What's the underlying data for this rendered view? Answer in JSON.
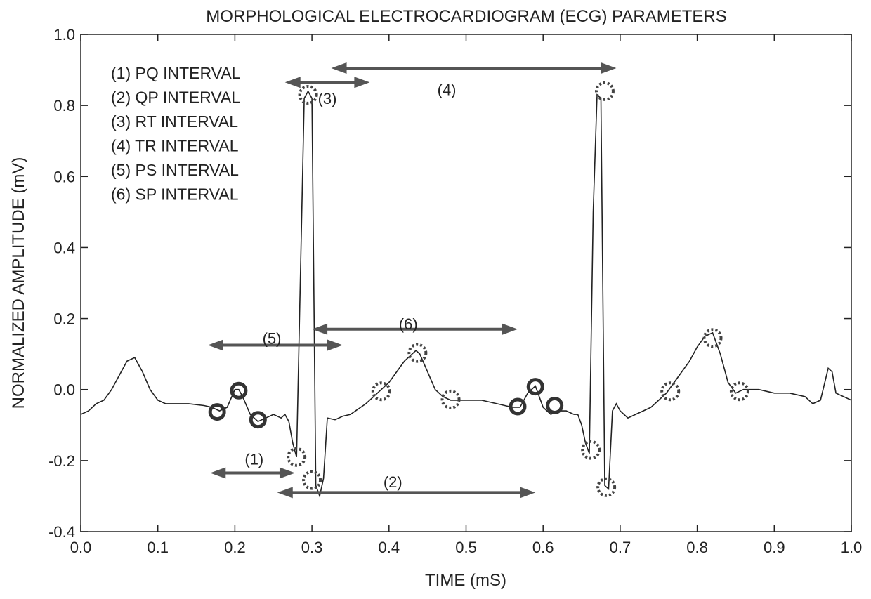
{
  "chart_data": {
    "type": "line",
    "title": "MORPHOLOGICAL ELECTROCARDIOGRAM (ECG) PARAMETERS",
    "xlabel": "TIME (mS)",
    "ylabel": "NORMALIZED AMPLITUDE (mV)",
    "xlim": [
      0.0,
      1.0
    ],
    "ylim": [
      -0.4,
      1.0
    ],
    "x_ticks": [
      "0.0",
      "0.1",
      "0.2",
      "0.3",
      "0.4",
      "0.5",
      "0.6",
      "0.7",
      "0.8",
      "0.9",
      "1.0"
    ],
    "y_ticks": [
      "-0.4",
      "-0.2",
      "0.0",
      "0.2",
      "0.4",
      "0.6",
      "0.8",
      "1.0"
    ],
    "legend": [
      "(1) PQ INTERVAL",
      "(2) QP INTERVAL",
      "(3) RT INTERVAL",
      "(4) TR INTERVAL",
      "(5) PS INTERVAL",
      "(6) SP INTERVAL"
    ],
    "series": [
      {
        "name": "ECG",
        "x": [
          0.0,
          0.01,
          0.02,
          0.03,
          0.04,
          0.05,
          0.06,
          0.07,
          0.08,
          0.09,
          0.1,
          0.11,
          0.12,
          0.14,
          0.16,
          0.17,
          0.18,
          0.19,
          0.2,
          0.205,
          0.21,
          0.22,
          0.23,
          0.24,
          0.25,
          0.26,
          0.265,
          0.27,
          0.275,
          0.28,
          0.29,
          0.295,
          0.3,
          0.305,
          0.31,
          0.315,
          0.32,
          0.33,
          0.34,
          0.35,
          0.36,
          0.37,
          0.38,
          0.39,
          0.4,
          0.41,
          0.42,
          0.43,
          0.435,
          0.44,
          0.45,
          0.46,
          0.47,
          0.48,
          0.5,
          0.52,
          0.54,
          0.56,
          0.57,
          0.58,
          0.59,
          0.6,
          0.61,
          0.62,
          0.63,
          0.64,
          0.645,
          0.65,
          0.655,
          0.66,
          0.665,
          0.67,
          0.675,
          0.68,
          0.685,
          0.69,
          0.695,
          0.7,
          0.71,
          0.72,
          0.73,
          0.74,
          0.75,
          0.76,
          0.77,
          0.78,
          0.79,
          0.8,
          0.81,
          0.82,
          0.83,
          0.84,
          0.85,
          0.86,
          0.88,
          0.9,
          0.92,
          0.94,
          0.95,
          0.96,
          0.97,
          0.975,
          0.98,
          0.99,
          1.0
        ],
        "y": [
          -0.07,
          -0.06,
          -0.04,
          -0.03,
          0.0,
          0.04,
          0.08,
          0.09,
          0.05,
          0.0,
          -0.03,
          -0.04,
          -0.04,
          -0.04,
          -0.045,
          -0.05,
          -0.06,
          -0.05,
          0.0,
          0.0,
          -0.02,
          -0.07,
          -0.09,
          -0.08,
          -0.07,
          -0.08,
          -0.07,
          -0.09,
          -0.15,
          -0.19,
          0.82,
          0.84,
          0.82,
          -0.27,
          -0.3,
          -0.25,
          -0.08,
          -0.085,
          -0.075,
          -0.07,
          -0.055,
          -0.04,
          -0.02,
          0.0,
          0.02,
          0.05,
          0.08,
          0.1,
          0.11,
          0.1,
          0.05,
          0.0,
          -0.02,
          -0.03,
          -0.03,
          -0.03,
          -0.04,
          -0.05,
          -0.05,
          -0.01,
          0.01,
          -0.05,
          -0.07,
          -0.06,
          -0.06,
          -0.07,
          -0.07,
          -0.1,
          -0.15,
          -0.18,
          0.5,
          0.83,
          0.82,
          -0.27,
          -0.28,
          -0.06,
          -0.04,
          -0.06,
          -0.08,
          -0.07,
          -0.06,
          -0.05,
          -0.03,
          -0.01,
          0.02,
          0.05,
          0.08,
          0.12,
          0.15,
          0.16,
          0.1,
          0.02,
          -0.01,
          0.0,
          0.0,
          -0.01,
          -0.01,
          -0.02,
          -0.04,
          -0.03,
          0.06,
          0.05,
          -0.01,
          -0.02,
          -0.03
        ]
      }
    ],
    "markers": {
      "hollow_circles": [
        [
          0.177,
          -0.063
        ],
        [
          0.205,
          -0.003
        ],
        [
          0.23,
          -0.085
        ],
        [
          0.567,
          -0.048
        ],
        [
          0.59,
          0.008
        ],
        [
          0.615,
          -0.045
        ]
      ],
      "dashed_circles": [
        [
          0.28,
          -0.19
        ],
        [
          0.3,
          -0.255
        ],
        [
          0.295,
          0.83
        ],
        [
          0.39,
          -0.005
        ],
        [
          0.437,
          0.103
        ],
        [
          0.48,
          -0.028
        ],
        [
          0.662,
          -0.17
        ],
        [
          0.682,
          -0.275
        ],
        [
          0.68,
          0.84
        ],
        [
          0.765,
          -0.005
        ],
        [
          0.82,
          0.145
        ],
        [
          0.855,
          -0.005
        ]
      ]
    },
    "intervals": [
      {
        "label": "(1)",
        "x_start": 0.168,
        "x_end": 0.278,
        "y": -0.235,
        "label_x": 0.225,
        "label_y": -0.195
      },
      {
        "label": "(2)",
        "x_start": 0.255,
        "x_end": 0.59,
        "y": -0.29,
        "label_x": 0.405,
        "label_y": -0.26
      },
      {
        "label": "(3)",
        "x_start": 0.265,
        "x_end": 0.375,
        "y": 0.865,
        "label_x": 0.32,
        "label_y": 0.82
      },
      {
        "label": "(4)",
        "x_start": 0.325,
        "x_end": 0.695,
        "y": 0.905,
        "label_x": 0.475,
        "label_y": 0.845
      },
      {
        "label": "(5)",
        "x_start": 0.165,
        "x_end": 0.34,
        "y": 0.125,
        "label_x": 0.248,
        "label_y": 0.145
      },
      {
        "label": "(6)",
        "x_start": 0.3,
        "x_end": 0.567,
        "y": 0.17,
        "label_x": 0.425,
        "label_y": 0.185
      }
    ]
  }
}
